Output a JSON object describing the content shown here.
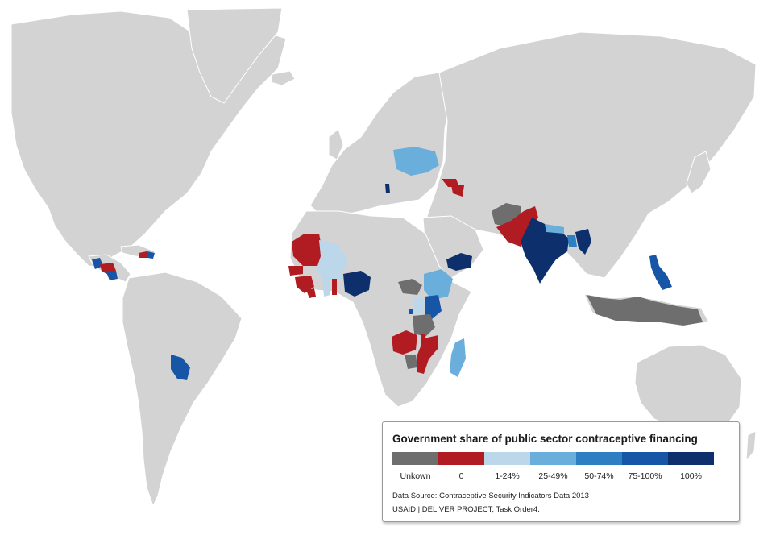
{
  "colors": {
    "land": "#d3d3d3",
    "unknown": "#6e6e6e",
    "zero": "#b01c22",
    "p1_24": "#bcd7ea",
    "p25_49": "#6aaedc",
    "p50_74": "#2e7fc1",
    "p75_100": "#1756a6",
    "p100": "#0d2f6b"
  },
  "legend": {
    "title": "Government share of public sector contraceptive financing",
    "categories": [
      {
        "label": "Unkown",
        "color": "#6e6e6e"
      },
      {
        "label": "0",
        "color": "#b01c22"
      },
      {
        "label": "1-24%",
        "color": "#bcd7ea"
      },
      {
        "label": "25-49%",
        "color": "#6aaedc"
      },
      {
        "label": "50-74%",
        "color": "#2e7fc1"
      },
      {
        "label": "75-100%",
        "color": "#1756a6"
      },
      {
        "label": "100%",
        "color": "#0d2f6b"
      }
    ],
    "source_line1": "Data Source: Contraceptive Security Indicators Data 2013",
    "source_line2": "USAID | DELIVER PROJECT, Task Order4."
  }
}
